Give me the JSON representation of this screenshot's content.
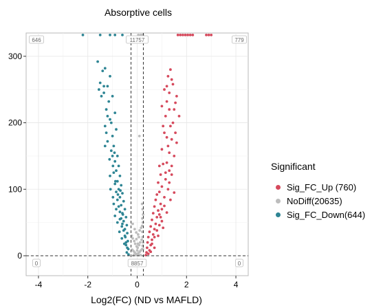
{
  "chart_data": {
    "type": "scatter",
    "title": "Absorptive cells",
    "xlabel": "Log2(FC)  (ND vs MAFLD)",
    "ylabel": "",
    "xlim": [
      -4.5,
      4.5
    ],
    "ylim": [
      -30,
      335
    ],
    "xticks": [
      -4,
      -2,
      0,
      2,
      4
    ],
    "yticks": [
      0,
      100,
      200,
      300
    ],
    "grid": true,
    "vlines": [
      -0.25,
      0.25
    ],
    "hline": 0,
    "count_labels": {
      "top_left": "646",
      "top_center": "11757",
      "top_right": "779",
      "bottom_left": "0",
      "bottom_center": "8857",
      "bottom_right": "0"
    },
    "legend": {
      "title": "Significant",
      "position": "right",
      "entries": [
        {
          "label": "Sig_FC_Up (760)",
          "color": "#d64a5d"
        },
        {
          "label": "NoDiff(20635)",
          "color": "#bdbdbd"
        },
        {
          "label": "Sig_FC_Down(644)",
          "color": "#2e8594"
        }
      ]
    },
    "series": [
      {
        "color": "#d64a5d",
        "points": [
          [
            1.2,
            232
          ],
          [
            1.3,
            220
          ],
          [
            1.15,
            210
          ],
          [
            1.35,
            195
          ],
          [
            1.1,
            185
          ],
          [
            1.4,
            175
          ],
          [
            1.25,
            165
          ],
          [
            1.0,
            160
          ],
          [
            1.5,
            150
          ],
          [
            1.2,
            140
          ],
          [
            1.05,
            138
          ],
          [
            1.3,
            128
          ],
          [
            0.95,
            122
          ],
          [
            1.15,
            115
          ],
          [
            0.85,
            110
          ],
          [
            1.0,
            104
          ],
          [
            0.9,
            96
          ],
          [
            0.8,
            92
          ],
          [
            1.1,
            88
          ],
          [
            0.75,
            84
          ],
          [
            0.95,
            78
          ],
          [
            0.7,
            74
          ],
          [
            0.85,
            68
          ],
          [
            0.65,
            64
          ],
          [
            0.8,
            58
          ],
          [
            0.6,
            54
          ],
          [
            0.75,
            48
          ],
          [
            0.55,
            44
          ],
          [
            0.7,
            40
          ],
          [
            0.5,
            36
          ],
          [
            0.65,
            32
          ],
          [
            0.45,
            28
          ],
          [
            0.6,
            24
          ],
          [
            0.42,
            20
          ],
          [
            0.55,
            16
          ],
          [
            0.4,
            12
          ],
          [
            0.5,
            8
          ],
          [
            0.38,
            5
          ],
          [
            0.45,
            3
          ],
          [
            0.35,
            1
          ],
          [
            1.2,
            255
          ],
          [
            1.3,
            245
          ],
          [
            1.4,
            265
          ],
          [
            1.35,
            280
          ],
          [
            1.5,
            220
          ],
          [
            1.45,
            200
          ],
          [
            1.55,
            185
          ],
          [
            1.6,
            170
          ],
          [
            1.1,
            250
          ],
          [
            1.25,
            270
          ],
          [
            1.05,
            195
          ],
          [
            1.2,
            178
          ],
          [
            0.9,
            135
          ],
          [
            1.15,
            125
          ],
          [
            1.4,
            135
          ],
          [
            1.3,
            110
          ],
          [
            1.25,
            100
          ],
          [
            1.1,
            75
          ],
          [
            1.2,
            65
          ],
          [
            0.95,
            58
          ],
          [
            1.0,
            52
          ],
          [
            0.9,
            46
          ],
          [
            0.8,
            38
          ],
          [
            0.7,
            28
          ],
          [
            0.6,
            18
          ],
          [
            0.85,
            30
          ],
          [
            1.05,
            42
          ],
          [
            0.7,
            12
          ],
          [
            0.55,
            6
          ],
          [
            1.4,
            122
          ],
          [
            1.5,
            95
          ],
          [
            1.35,
            84
          ],
          [
            1.0,
            70
          ],
          [
            0.9,
            62
          ],
          [
            1.3,
            155
          ],
          [
            1.6,
            240
          ],
          [
            1.45,
            258
          ],
          [
            1.7,
            210
          ],
          [
            1.55,
            230
          ],
          [
            1.0,
            225
          ],
          [
            1.65,
            332
          ],
          [
            1.75,
            332
          ],
          [
            1.85,
            332
          ],
          [
            1.95,
            332
          ],
          [
            2.05,
            332
          ],
          [
            2.15,
            332
          ],
          [
            2.25,
            332
          ],
          [
            2.8,
            332
          ],
          [
            2.9,
            332
          ],
          [
            3.0,
            332
          ]
        ]
      },
      {
        "color": "#bdbdbd",
        "points": [
          [
            0.0,
            2
          ],
          [
            0.05,
            4
          ],
          [
            -0.05,
            3
          ],
          [
            0.1,
            6
          ],
          [
            -0.1,
            5
          ],
          [
            0.15,
            8
          ],
          [
            -0.15,
            7
          ],
          [
            0.2,
            10
          ],
          [
            -0.2,
            9
          ],
          [
            0.02,
            12
          ],
          [
            -0.02,
            14
          ],
          [
            0.08,
            16
          ],
          [
            -0.08,
            18
          ],
          [
            0.12,
            20
          ],
          [
            -0.12,
            22
          ],
          [
            0.18,
            24
          ],
          [
            -0.18,
            26
          ],
          [
            0.22,
            28
          ],
          [
            -0.22,
            30
          ],
          [
            0.04,
            32
          ],
          [
            -0.04,
            35
          ],
          [
            0.1,
            38
          ],
          [
            -0.1,
            40
          ],
          [
            0.16,
            42
          ],
          [
            0.2,
            45
          ],
          [
            0.23,
            50
          ],
          [
            0.21,
            56
          ],
          [
            0.24,
            62
          ],
          [
            0.22,
            70
          ],
          [
            0.2,
            78
          ],
          [
            -0.06,
            1
          ],
          [
            0.06,
            1
          ],
          [
            0.14,
            1
          ],
          [
            -0.14,
            1
          ],
          [
            0.0,
            8
          ],
          [
            0.03,
            18
          ],
          [
            -0.03,
            25
          ],
          [
            0.07,
            28
          ],
          [
            0.09,
            180
          ],
          [
            0.05,
            332
          ],
          [
            0.15,
            332
          ],
          [
            0.23,
            332
          ],
          [
            -0.18,
            48
          ],
          [
            0.23,
            10
          ],
          [
            0.22,
            15
          ],
          [
            0.24,
            20
          ],
          [
            0.21,
            36
          ]
        ]
      },
      {
        "color": "#2e8594",
        "points": [
          [
            -1.6,
            292
          ],
          [
            -1.3,
            282
          ],
          [
            -1.4,
            278
          ],
          [
            -1.1,
            270
          ],
          [
            -1.5,
            260
          ],
          [
            -1.2,
            255
          ],
          [
            -1.35,
            245
          ],
          [
            -1.0,
            240
          ],
          [
            -1.15,
            232
          ],
          [
            -1.25,
            220
          ],
          [
            -0.9,
            215
          ],
          [
            -1.1,
            205
          ],
          [
            -1.3,
            195
          ],
          [
            -0.85,
            190
          ],
          [
            -1.0,
            180
          ],
          [
            -1.2,
            172
          ],
          [
            -0.95,
            165
          ],
          [
            -1.05,
            158
          ],
          [
            -0.8,
            150
          ],
          [
            -0.9,
            142
          ],
          [
            -0.75,
            135
          ],
          [
            -0.85,
            128
          ],
          [
            -0.7,
            120
          ],
          [
            -0.8,
            112
          ],
          [
            -0.65,
            106
          ],
          [
            -0.75,
            100
          ],
          [
            -0.6,
            94
          ],
          [
            -0.7,
            88
          ],
          [
            -0.55,
            82
          ],
          [
            -0.65,
            76
          ],
          [
            -0.5,
            70
          ],
          [
            -0.6,
            64
          ],
          [
            -0.45,
            58
          ],
          [
            -0.55,
            52
          ],
          [
            -0.42,
            46
          ],
          [
            -0.5,
            40
          ],
          [
            -0.4,
            34
          ],
          [
            -0.48,
            28
          ],
          [
            -0.38,
            22
          ],
          [
            -0.45,
            16
          ],
          [
            -0.36,
            10
          ],
          [
            -0.42,
            5
          ],
          [
            -0.35,
            2
          ],
          [
            -1.0,
            150
          ],
          [
            -0.95,
            125
          ],
          [
            -0.9,
            108
          ],
          [
            -0.85,
            96
          ],
          [
            -0.8,
            84
          ],
          [
            -0.75,
            74
          ],
          [
            -0.7,
            66
          ],
          [
            -0.65,
            56
          ],
          [
            -0.6,
            48
          ],
          [
            -0.55,
            38
          ],
          [
            -0.5,
            30
          ],
          [
            -0.45,
            20
          ],
          [
            -0.4,
            12
          ],
          [
            -0.7,
            55
          ],
          [
            -0.62,
            44
          ],
          [
            -0.58,
            62
          ],
          [
            -0.68,
            98
          ],
          [
            -0.78,
            92
          ],
          [
            -0.88,
            112
          ],
          [
            -1.1,
            120
          ],
          [
            -0.98,
            135
          ],
          [
            -1.05,
            200
          ],
          [
            -1.2,
            210
          ],
          [
            -1.25,
            185
          ],
          [
            -1.3,
            165
          ],
          [
            -1.45,
            240
          ],
          [
            -1.55,
            250
          ],
          [
            -1.35,
            255
          ],
          [
            -0.95,
            78
          ],
          [
            -0.85,
            70
          ],
          [
            -0.72,
            36
          ],
          [
            -0.62,
            26
          ],
          [
            -0.52,
            18
          ],
          [
            -0.9,
            60
          ],
          [
            -0.8,
            50
          ],
          [
            -0.98,
            88
          ],
          [
            -1.08,
            100
          ],
          [
            -1.12,
            145
          ],
          [
            -0.92,
            155
          ],
          [
            -2.2,
            332
          ],
          [
            -1.5,
            332
          ],
          [
            -1.1,
            332
          ],
          [
            -0.9,
            332
          ],
          [
            -0.6,
            332
          ]
        ]
      }
    ]
  }
}
